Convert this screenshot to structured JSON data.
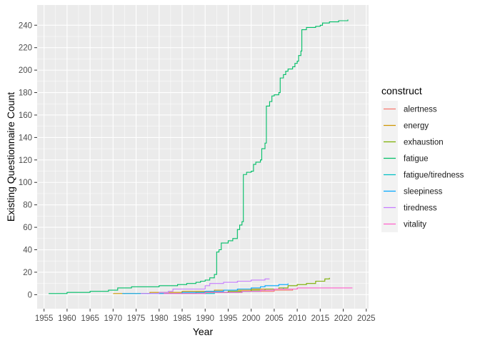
{
  "chart_data": {
    "type": "line",
    "xlabel": "Year",
    "ylabel": "Existing Questionnaire Count",
    "xlim": [
      1953.5,
      2025.5
    ],
    "ylim": [
      -12.5,
      258
    ],
    "x_ticks": [
      1955,
      1960,
      1965,
      1970,
      1975,
      1980,
      1985,
      1990,
      1995,
      2000,
      2005,
      2010,
      2015,
      2020,
      2025
    ],
    "y_ticks": [
      0,
      20,
      40,
      60,
      80,
      100,
      120,
      140,
      160,
      180,
      200,
      220,
      240
    ],
    "grid": true,
    "step": true,
    "legend": {
      "title": "construct",
      "placement": "right"
    },
    "series": [
      {
        "name": "alertness",
        "color": "#F8766D",
        "points": [
          [
            1980,
            1
          ],
          [
            1990,
            2
          ],
          [
            1998,
            3
          ],
          [
            2005,
            4
          ],
          [
            2009,
            5
          ]
        ]
      },
      {
        "name": "energy",
        "color": "#CD9600",
        "points": [
          [
            1970,
            1
          ],
          [
            1978,
            2
          ],
          [
            1985,
            3
          ],
          [
            1992,
            4
          ],
          [
            2000,
            5
          ],
          [
            2010,
            6
          ]
        ]
      },
      {
        "name": "exhaustion",
        "color": "#7CAE00",
        "points": [
          [
            1981,
            1
          ],
          [
            1988,
            2
          ],
          [
            1995,
            3
          ],
          [
            2000,
            4
          ],
          [
            2003,
            5
          ],
          [
            2006,
            6
          ],
          [
            2008,
            8
          ],
          [
            2010,
            9
          ],
          [
            2012,
            10
          ],
          [
            2014,
            12
          ],
          [
            2016,
            14
          ],
          [
            2017,
            15
          ]
        ]
      },
      {
        "name": "fatigue",
        "color": "#00BE67",
        "points": [
          [
            1956,
            1
          ],
          [
            1960,
            2
          ],
          [
            1965,
            3
          ],
          [
            1969,
            4
          ],
          [
            1971,
            6
          ],
          [
            1974,
            7
          ],
          [
            1980,
            8
          ],
          [
            1984,
            9
          ],
          [
            1986,
            10
          ],
          [
            1988,
            11
          ],
          [
            1989,
            12
          ],
          [
            1990,
            13
          ],
          [
            1991,
            15
          ],
          [
            1992,
            18
          ],
          [
            1992.5,
            38
          ],
          [
            1993,
            40
          ],
          [
            1993.5,
            46
          ],
          [
            1995,
            48
          ],
          [
            1996,
            50
          ],
          [
            1997,
            58
          ],
          [
            1997.5,
            62
          ],
          [
            1998,
            65
          ],
          [
            1998.3,
            107
          ],
          [
            1999,
            109
          ],
          [
            2000,
            110
          ],
          [
            2000.5,
            116
          ],
          [
            2001,
            118
          ],
          [
            2002,
            120
          ],
          [
            2002.3,
            130
          ],
          [
            2003,
            135
          ],
          [
            2003.3,
            168
          ],
          [
            2004,
            172
          ],
          [
            2004.5,
            177
          ],
          [
            2005,
            178
          ],
          [
            2006,
            180
          ],
          [
            2006.3,
            193
          ],
          [
            2007,
            196
          ],
          [
            2007.5,
            199
          ],
          [
            2008,
            201
          ],
          [
            2009,
            203
          ],
          [
            2009.5,
            206
          ],
          [
            2010,
            208
          ],
          [
            2010.3,
            213
          ],
          [
            2010.8,
            217
          ],
          [
            2011,
            236
          ],
          [
            2012,
            238
          ],
          [
            2014,
            239
          ],
          [
            2015,
            240
          ],
          [
            2015.5,
            242
          ],
          [
            2017,
            243
          ],
          [
            2019,
            244
          ],
          [
            2021,
            245
          ]
        ]
      },
      {
        "name": "fatigue/tiredness",
        "color": "#00BFC4",
        "points": [
          [
            1984,
            1
          ],
          [
            1992,
            2
          ],
          [
            1998,
            3
          ],
          [
            2002,
            4
          ],
          [
            2005,
            5
          ],
          [
            2007,
            6
          ]
        ]
      },
      {
        "name": "sleepiness",
        "color": "#00A9FF",
        "points": [
          [
            1972,
            1
          ],
          [
            1985,
            2
          ],
          [
            1990,
            3
          ],
          [
            1994,
            4
          ],
          [
            1997,
            5
          ],
          [
            2000,
            6
          ],
          [
            2002,
            7
          ],
          [
            2003,
            8
          ],
          [
            2006,
            9
          ],
          [
            2008,
            10
          ]
        ]
      },
      {
        "name": "tiredness",
        "color": "#C77CFF",
        "points": [
          [
            1976,
            1
          ],
          [
            1980,
            2
          ],
          [
            1982,
            3
          ],
          [
            1983,
            5
          ],
          [
            1990,
            8
          ],
          [
            1991,
            10
          ],
          [
            1994,
            11
          ],
          [
            1997,
            12
          ],
          [
            2000,
            13
          ],
          [
            2003,
            14
          ],
          [
            2004,
            14
          ]
        ]
      },
      {
        "name": "vitality",
        "color": "#FF61CC",
        "points": [
          [
            1981,
            1
          ],
          [
            1990,
            2
          ],
          [
            1998,
            3
          ],
          [
            2002,
            4
          ],
          [
            2005,
            5
          ],
          [
            2010,
            6
          ],
          [
            2022,
            6
          ]
        ]
      }
    ]
  }
}
